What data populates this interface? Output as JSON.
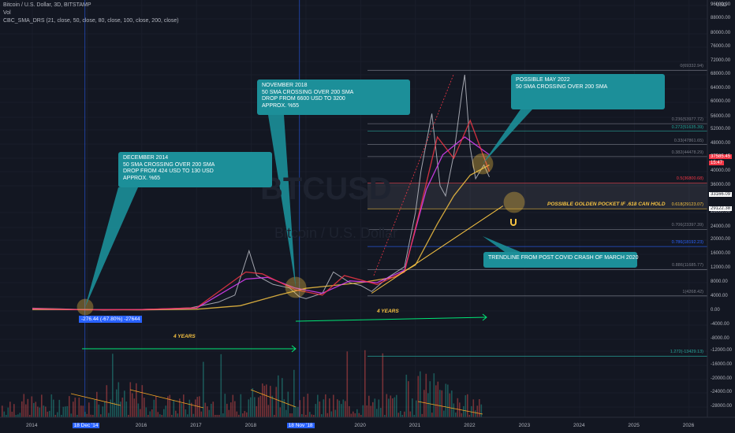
{
  "header": {
    "symbol_line": "Bitcoin / U.S. Dollar, 3D, BITSTAMP",
    "vol_line": "Vol",
    "indicator_line": "CBC_SMA_DRS (21, close, 50, close, 80, close, 100, close, 200, close)"
  },
  "currency": "USD",
  "watermark": {
    "line1": "BTCUSD",
    "line2": "Bitcoin / U.S. Dollar"
  },
  "notes": [
    {
      "id": "note-dec-2014",
      "text": "DECEMBER 2014\n50 SMA CROSSING OVER 200 SMA\nDROP FROM 424 USD TO 130 USD\nAPPROX. %65"
    },
    {
      "id": "note-nov-2018",
      "text": "NOVEMBER 2018\n50 SMA CROSSING OVER 200 SMA\nDROP FROM 6600 USD TO 3200\nAPPROX. %55"
    },
    {
      "id": "note-may-2022",
      "text": "POSSIBLE MAY 2022\n50 SMA CROSSING OVER 200 SMA"
    },
    {
      "id": "note-trendline",
      "text": "TRENDLINE FROM POST COVID CRASH OF MARCH 2020"
    }
  ],
  "labels": {
    "golden_pocket": "POSSIBLE GOLDEN POCKET IF .618 CAN HOLD",
    "four_years_1": "4 YEARS",
    "four_years_2": "4 YEARS",
    "measure": "-276.44 (-67.80%) -27644"
  },
  "y_axis": {
    "ticks": [
      "96000.00",
      "88000.00",
      "80000.00",
      "76000.00",
      "72000.00",
      "68000.00",
      "64000.00",
      "60000.00",
      "56000.00",
      "52000.00",
      "48000.00",
      "44000.00",
      "40000.00",
      "36000.00",
      "28000.00",
      "24000.00",
      "20000.00",
      "16000.00",
      "12000.00",
      "8000.00",
      "4000.00",
      "0.00",
      "-4000.00",
      "-8000.00",
      "-12000.00",
      "-16000.00",
      "-20000.00",
      "-24000.00",
      "-28000.00"
    ]
  },
  "x_axis": {
    "ticks": [
      "2014",
      "18 Dec '14",
      "2016",
      "2017",
      "2018",
      "18 Nov '18",
      "2020",
      "2021",
      "2022",
      "2023",
      "2024",
      "2025",
      "2026"
    ]
  },
  "price_tags": [
    {
      "text": "37585.45",
      "color": "#f23645"
    },
    {
      "text": "15:47",
      "color": "#f23645"
    },
    {
      "text": "33166.09",
      "color": "#ffffff"
    },
    {
      "text": "29122.38",
      "color": "#ffffff"
    }
  ],
  "chart_data": {
    "type": "line",
    "title": "Bitcoin / U.S. Dollar, 3D, BITSTAMP",
    "ylim": [
      -30000,
      100000
    ],
    "xlim": [
      2013.7,
      2026.6
    ],
    "fib_levels": [
      {
        "ratio": "0",
        "price": 69332.94,
        "label": "0(69332.94)"
      },
      {
        "ratio": "0.236",
        "price": 53977.72,
        "label": "0.236(53977.72)"
      },
      {
        "ratio": "0.272",
        "price": 51635.39,
        "label": "0.272(51635.39)"
      },
      {
        "ratio": "0.33",
        "price": 47861.65,
        "label": "0.33(47861.65)"
      },
      {
        "ratio": "0.382",
        "price": 44478.29,
        "label": "0.382(44478.29)"
      },
      {
        "ratio": "0.5",
        "price": 36800.68,
        "label": "0.5(36800.68)"
      },
      {
        "ratio": "0.618",
        "price": 29123.07,
        "label": "0.618(29123.07)"
      },
      {
        "ratio": "0.706",
        "price": 23397.39,
        "label": "0.706(23397.39)"
      },
      {
        "ratio": "0.786",
        "price": 18192.23,
        "label": "0.786(18192.23)"
      },
      {
        "ratio": "0.886",
        "price": 11685.77,
        "label": "0.886(11685.77)"
      },
      {
        "ratio": "1",
        "price": 4268.42,
        "label": "1(4268.42)"
      },
      {
        "ratio": "1.272",
        "price": -13429.13,
        "label": "1.272(-13429.13)"
      }
    ],
    "series": [
      {
        "name": "",
        "color": "#b2b5be",
        "x": [
          2014.0,
          2014.5,
          2014.96,
          2015.3,
          2015.8,
          2016.5,
          2016.9,
          2017.4,
          2017.7,
          2017.96,
          2018.1,
          2018.4,
          2018.7,
          2018.88,
          2019.0,
          2019.3,
          2019.5,
          2019.8,
          2020.0,
          2020.2,
          2020.5,
          2020.8,
          2021.0,
          2021.1,
          2021.3,
          2021.45,
          2021.55,
          2021.7,
          2021.85,
          2021.9,
          2022.0,
          2022.1,
          2022.25,
          2022.35
        ],
        "y": [
          800,
          600,
          400,
          250,
          350,
          650,
          900,
          2500,
          4500,
          17000,
          10000,
          7500,
          6500,
          4000,
          3500,
          5000,
          11000,
          8000,
          7200,
          5500,
          9500,
          12500,
          28000,
          40000,
          57000,
          36000,
          33000,
          45000,
          63000,
          68000,
          47000,
          38000,
          42000,
          38500
        ]
      },
      {
        "name": "",
        "color": "#f5c242",
        "x": [
          2014.0,
          2015.0,
          2016.0,
          2017.0,
          2017.8,
          2018.5,
          2019.0,
          2019.5,
          2020.0,
          2020.6,
          2021.0,
          2021.4,
          2021.7,
          2022.0,
          2022.35
        ],
        "y": [
          400,
          380,
          300,
          500,
          1500,
          4500,
          6400,
          7200,
          8000,
          9500,
          13000,
          25000,
          33000,
          39000,
          42000
        ]
      },
      {
        "name": "",
        "color": "#e040fb",
        "x": [
          2014.0,
          2015.0,
          2016.0,
          2017.0,
          2017.9,
          2018.3,
          2018.8,
          2019.3,
          2019.8,
          2020.3,
          2020.8,
          2021.2,
          2021.5,
          2021.9,
          2022.35
        ],
        "y": [
          600,
          350,
          400,
          800,
          9000,
          9500,
          6500,
          5000,
          8500,
          8000,
          11500,
          35000,
          45000,
          50000,
          45000
        ]
      },
      {
        "name": "",
        "color": "#f23645",
        "x": [
          2014.0,
          2015.0,
          2016.0,
          2017.0,
          2017.9,
          2018.2,
          2018.8,
          2019.3,
          2019.7,
          2020.3,
          2020.8,
          2021.1,
          2021.4,
          2021.7,
          2022.0,
          2022.35
        ],
        "y": [
          700,
          300,
          420,
          900,
          11000,
          10500,
          6000,
          4500,
          10000,
          7500,
          11000,
          30000,
          50000,
          44000,
          55000,
          40000
        ]
      }
    ],
    "trendline": {
      "color": "#f5c242",
      "x": [
        2020.2,
        2022.6
      ],
      "y": [
        5000,
        30000
      ]
    }
  }
}
